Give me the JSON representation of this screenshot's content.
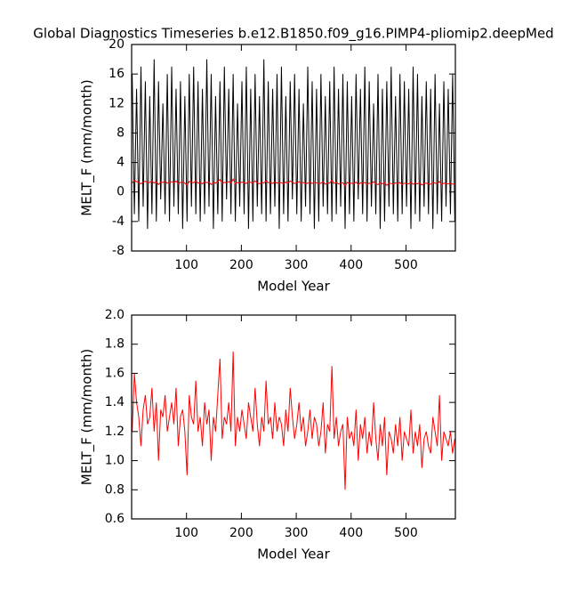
{
  "chart_data": [
    {
      "type": "line",
      "title": "Global Diagnostics Timeseries b.e12.B1850.f09_g16.PIMP4-pliomip2.deepMed",
      "x_label": "Model Year",
      "y_label": "MELT_F (mm/month)",
      "xlim": [
        0,
        590
      ],
      "xticks": [
        100,
        200,
        300,
        400,
        500
      ],
      "ylim": [
        -8,
        20
      ],
      "yticks": [
        -8,
        -4,
        0,
        4,
        8,
        12,
        16,
        20
      ],
      "x": [
        1,
        5,
        9,
        13,
        17,
        21,
        25,
        29,
        33,
        37,
        41,
        45,
        49,
        53,
        57,
        61,
        65,
        69,
        73,
        77,
        81,
        85,
        89,
        93,
        97,
        101,
        105,
        109,
        113,
        117,
        121,
        125,
        129,
        133,
        137,
        141,
        145,
        149,
        153,
        157,
        161,
        165,
        169,
        173,
        177,
        181,
        185,
        189,
        193,
        197,
        201,
        205,
        209,
        213,
        217,
        221,
        225,
        229,
        233,
        237,
        241,
        245,
        249,
        253,
        257,
        261,
        265,
        269,
        273,
        277,
        281,
        285,
        289,
        293,
        297,
        301,
        305,
        309,
        313,
        317,
        321,
        325,
        329,
        333,
        337,
        341,
        345,
        349,
        353,
        357,
        361,
        365,
        369,
        373,
        377,
        381,
        385,
        389,
        393,
        397,
        401,
        405,
        409,
        413,
        417,
        421,
        425,
        429,
        433,
        437,
        441,
        445,
        449,
        453,
        457,
        461,
        465,
        469,
        473,
        477,
        481,
        485,
        489,
        493,
        497,
        501,
        505,
        509,
        513,
        517,
        521,
        525,
        529,
        533,
        537,
        541,
        545,
        549,
        553,
        557,
        561,
        565,
        569,
        573,
        577,
        581,
        585,
        589
      ],
      "series": [
        {
          "color": "#000000",
          "values": [
            16,
            -3,
            14,
            -4,
            17,
            -2,
            15,
            -5,
            13,
            -3,
            18,
            -4,
            15,
            -1,
            12,
            -3,
            16,
            -4,
            17,
            -2,
            14,
            -3,
            15,
            -5,
            13,
            -4,
            16,
            -2,
            17,
            -3,
            15,
            -4,
            14,
            -3,
            18,
            -2,
            16,
            -5,
            13,
            -3,
            15,
            -4,
            17,
            -1,
            14,
            -3,
            16,
            -4,
            12,
            -2,
            15,
            -3,
            17,
            -5,
            14,
            -4,
            16,
            -2,
            13,
            -3,
            18,
            -4,
            15,
            -3,
            14,
            -2,
            16,
            -5,
            17,
            -3,
            13,
            -4,
            15,
            -1,
            16,
            -3,
            14,
            -4,
            12,
            -2,
            17,
            -3,
            15,
            -5,
            14,
            -4,
            16,
            -2,
            13,
            -3,
            15,
            -4,
            17,
            -3,
            14,
            -2,
            16,
            -5,
            15,
            -3,
            13,
            -4,
            16,
            -1,
            14,
            -3,
            17,
            -4,
            15,
            -2,
            12,
            -3,
            16,
            -5,
            14,
            -4,
            15,
            -2,
            17,
            -3,
            13,
            -4,
            16,
            -3,
            15,
            -2,
            14,
            -5,
            17,
            -3,
            16,
            -4,
            13,
            -2,
            15,
            -3,
            14,
            -5,
            16,
            -3,
            12,
            -4,
            15,
            -2,
            14,
            -3,
            16,
            -4
          ]
        },
        {
          "color": "#ff0000",
          "values": [
            1.2,
            1.6,
            1.4,
            1.3,
            1.1,
            1.35,
            1.45,
            1.25,
            1.3,
            1.5,
            1.2,
            1.4,
            1.0,
            1.35,
            1.3,
            1.45,
            1.2,
            1.3,
            1.4,
            1.25,
            1.5,
            1.1,
            1.3,
            1.35,
            1.2,
            0.9,
            1.45,
            1.3,
            1.25,
            1.55,
            1.2,
            1.3,
            1.1,
            1.4,
            1.25,
            1.35,
            1.0,
            1.3,
            1.2,
            1.45,
            1.7,
            1.15,
            1.3,
            1.25,
            1.4,
            1.2,
            1.75,
            1.1,
            1.3,
            1.2,
            1.35,
            1.25,
            1.15,
            1.4,
            1.3,
            1.2,
            1.5,
            1.25,
            1.1,
            1.3,
            1.2,
            1.55,
            1.25,
            1.3,
            1.15,
            1.4,
            1.2,
            1.3,
            1.25,
            1.1,
            1.35,
            1.2,
            1.5,
            1.3,
            1.15,
            1.25,
            1.4,
            1.2,
            1.3,
            1.1,
            1.2,
            1.35,
            1.15,
            1.3,
            1.25,
            1.1,
            1.2,
            1.4,
            1.05,
            1.25,
            1.2,
            1.65,
            1.15,
            1.3,
            1.1,
            1.2,
            1.25,
            0.8,
            1.3,
            1.15,
            1.2,
            1.1,
            1.35,
            1.0,
            1.25,
            1.15,
            1.3,
            1.05,
            1.2,
            1.1,
            1.4,
            1.15,
            1.0,
            1.25,
            1.1,
            1.3,
            0.9,
            1.2,
            1.15,
            1.05,
            1.25,
            1.1,
            1.3,
            1.0,
            1.2,
            1.15,
            1.1,
            1.35,
            1.05,
            1.2,
            1.1,
            1.25,
            0.95,
            1.15,
            1.2,
            1.1,
            1.05,
            1.3,
            1.2,
            1.1,
            1.45,
            1.0,
            1.2,
            1.15,
            1.1,
            1.2,
            1.05,
            1.15
          ]
        }
      ]
    },
    {
      "type": "line",
      "x_label": "Model Year",
      "y_label": "MELT_F (mm/month)",
      "xlim": [
        0,
        590
      ],
      "xticks": [
        100,
        200,
        300,
        400,
        500
      ],
      "ylim": [
        0.6,
        2.0
      ],
      "yticks": [
        0.6,
        0.8,
        {
          "value": 1.0,
          "label": "1.0"
        },
        1.2,
        1.4,
        1.6,
        1.8,
        {
          "value": 2.0,
          "label": "2.0"
        }
      ],
      "x": [
        1,
        5,
        9,
        13,
        17,
        21,
        25,
        29,
        33,
        37,
        41,
        45,
        49,
        53,
        57,
        61,
        65,
        69,
        73,
        77,
        81,
        85,
        89,
        93,
        97,
        101,
        105,
        109,
        113,
        117,
        121,
        125,
        129,
        133,
        137,
        141,
        145,
        149,
        153,
        157,
        161,
        165,
        169,
        173,
        177,
        181,
        185,
        189,
        193,
        197,
        201,
        205,
        209,
        213,
        217,
        221,
        225,
        229,
        233,
        237,
        241,
        245,
        249,
        253,
        257,
        261,
        265,
        269,
        273,
        277,
        281,
        285,
        289,
        293,
        297,
        301,
        305,
        309,
        313,
        317,
        321,
        325,
        329,
        333,
        337,
        341,
        345,
        349,
        353,
        357,
        361,
        365,
        369,
        373,
        377,
        381,
        385,
        389,
        393,
        397,
        401,
        405,
        409,
        413,
        417,
        421,
        425,
        429,
        433,
        437,
        441,
        445,
        449,
        453,
        457,
        461,
        465,
        469,
        473,
        477,
        481,
        485,
        489,
        493,
        497,
        501,
        505,
        509,
        513,
        517,
        521,
        525,
        529,
        533,
        537,
        541,
        545,
        549,
        553,
        557,
        561,
        565,
        569,
        573,
        577,
        581,
        585,
        589
      ],
      "series": [
        {
          "color": "#ff0000",
          "values": [
            1.2,
            1.6,
            1.4,
            1.3,
            1.1,
            1.35,
            1.45,
            1.25,
            1.3,
            1.5,
            1.2,
            1.4,
            1.0,
            1.35,
            1.3,
            1.45,
            1.2,
            1.3,
            1.4,
            1.25,
            1.5,
            1.1,
            1.3,
            1.35,
            1.2,
            0.9,
            1.45,
            1.3,
            1.25,
            1.55,
            1.2,
            1.3,
            1.1,
            1.4,
            1.25,
            1.35,
            1.0,
            1.3,
            1.2,
            1.45,
            1.7,
            1.15,
            1.3,
            1.25,
            1.4,
            1.2,
            1.75,
            1.1,
            1.3,
            1.2,
            1.35,
            1.25,
            1.15,
            1.4,
            1.3,
            1.2,
            1.5,
            1.25,
            1.1,
            1.3,
            1.2,
            1.55,
            1.25,
            1.3,
            1.15,
            1.4,
            1.2,
            1.3,
            1.25,
            1.1,
            1.35,
            1.2,
            1.5,
            1.3,
            1.15,
            1.25,
            1.4,
            1.2,
            1.3,
            1.1,
            1.2,
            1.35,
            1.15,
            1.3,
            1.25,
            1.1,
            1.2,
            1.4,
            1.05,
            1.25,
            1.2,
            1.65,
            1.15,
            1.3,
            1.1,
            1.2,
            1.25,
            0.8,
            1.3,
            1.15,
            1.2,
            1.1,
            1.35,
            1.0,
            1.25,
            1.15,
            1.3,
            1.05,
            1.2,
            1.1,
            1.4,
            1.15,
            1.0,
            1.25,
            1.1,
            1.3,
            0.9,
            1.2,
            1.15,
            1.05,
            1.25,
            1.1,
            1.3,
            1.0,
            1.2,
            1.15,
            1.1,
            1.35,
            1.05,
            1.2,
            1.1,
            1.25,
            0.95,
            1.15,
            1.2,
            1.1,
            1.05,
            1.3,
            1.2,
            1.1,
            1.45,
            1.0,
            1.2,
            1.15,
            1.1,
            1.2,
            1.05,
            1.15
          ]
        }
      ]
    }
  ]
}
